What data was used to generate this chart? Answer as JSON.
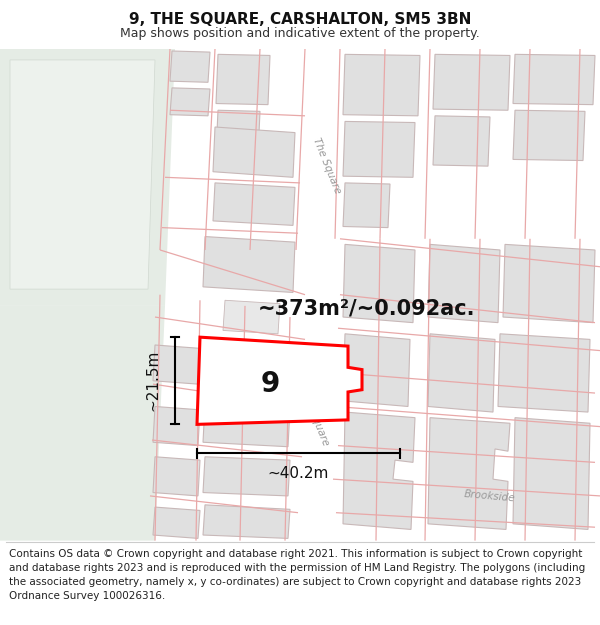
{
  "title": "9, THE SQUARE, CARSHALTON, SM5 3BN",
  "subtitle": "Map shows position and indicative extent of the property.",
  "footer": "Contains OS data © Crown copyright and database right 2021. This information is subject to Crown copyright and database rights 2023 and is reproduced with the permission of HM Land Registry. The polygons (including the associated geometry, namely x, y co-ordinates) are subject to Crown copyright and database rights 2023 Ordnance Survey 100026316.",
  "area_text": "~373m²/~0.092ac.",
  "width_text": "~40.2m",
  "height_text": "~21.5m",
  "label_text": "9",
  "bg_color": "#f0f0ee",
  "green_color": "#e8ede8",
  "road_color": "#ffffff",
  "building_fill": "#e0e0e0",
  "building_edge": "#c8b8b8",
  "parcel_line": "#e8a8a8",
  "plot_color": "#ff0000",
  "title_fontsize": 11,
  "subtitle_fontsize": 9,
  "footer_fontsize": 7.5,
  "area_fontsize": 15,
  "label_fontsize": 20,
  "dim_fontsize": 11
}
